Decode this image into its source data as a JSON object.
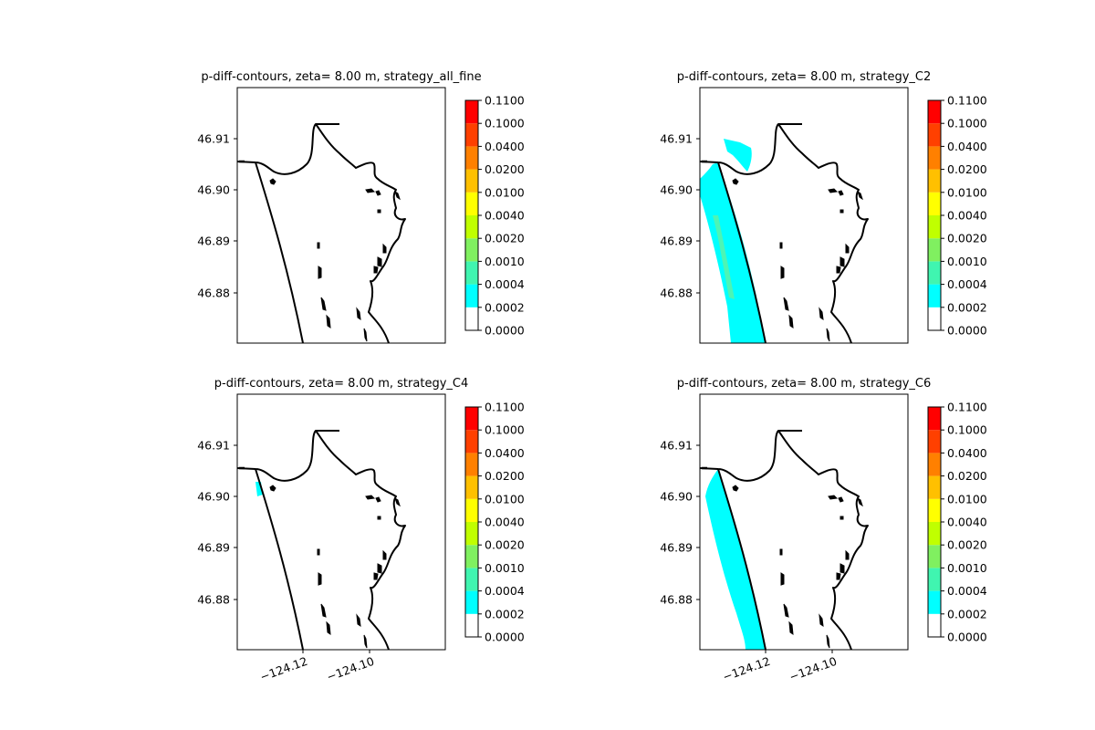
{
  "chart_data": {
    "type": "contour-map",
    "colorbar": {
      "levels": [
        "0.0000",
        "0.0002",
        "0.0004",
        "0.0010",
        "0.0020",
        "0.0040",
        "0.0100",
        "0.0200",
        "0.0400",
        "0.1000",
        "0.1100"
      ],
      "colors": [
        "#ffffff",
        "#00ffff",
        "#40f5b0",
        "#80f060",
        "#c0ff00",
        "#ffff00",
        "#ffc000",
        "#ff8000",
        "#ff4000",
        "#ff0000"
      ]
    },
    "yticks": [
      "46.91",
      "46.90",
      "46.89",
      "46.88"
    ],
    "xticks": [
      "−124.12",
      "−124.10"
    ],
    "panels": [
      {
        "title": "p-diff-contours, zeta= 8.00 m, strategy_all_fine",
        "fill": "none"
      },
      {
        "title": "p-diff-contours, zeta= 8.00 m, strategy_C2",
        "fill": "wide"
      },
      {
        "title": "p-diff-contours, zeta= 8.00 m, strategy_C4",
        "fill": "small"
      },
      {
        "title": "p-diff-contours, zeta= 8.00 m, strategy_C6",
        "fill": "medium"
      }
    ]
  }
}
